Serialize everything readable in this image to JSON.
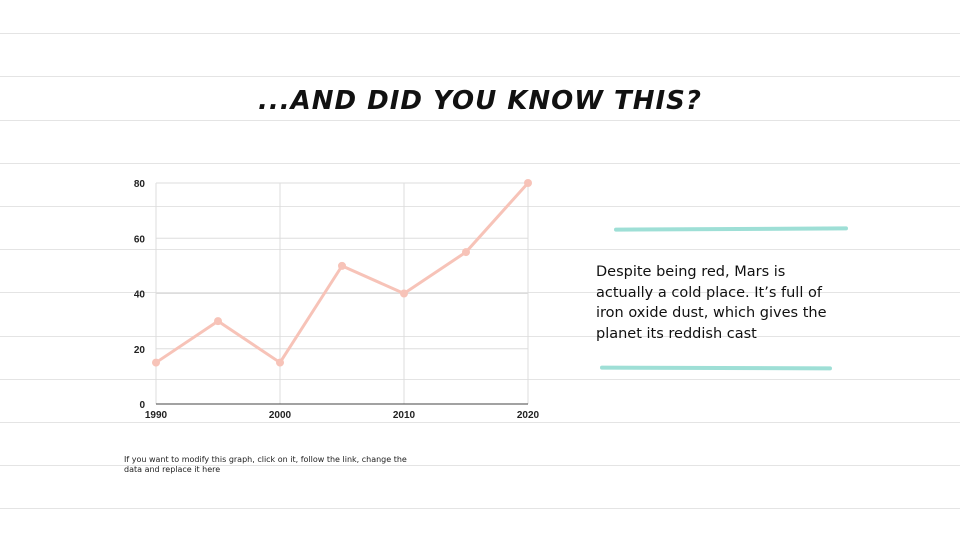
{
  "slide": {
    "title": "...and did you know this?",
    "body_text": "Despite being red, Mars is actually a cold place. It’s full of iron oxide dust, which gives the planet its reddish cast",
    "note_text": "If you want to modify this graph, click on it, follow the link, change the data and replace it here",
    "accent_color": "#94dcd2",
    "line_color": "#f7c3b8"
  },
  "chart_data": {
    "type": "line",
    "title": "",
    "xlabel": "",
    "ylabel": "",
    "x": [
      1990,
      1995,
      2000,
      2005,
      2010,
      2015,
      2020
    ],
    "series": [
      {
        "values": [
          15,
          30,
          15,
          50,
          40,
          55,
          80
        ]
      }
    ],
    "xticks": [
      "1990",
      "2000",
      "2010",
      "2020"
    ],
    "yticks": [
      "0",
      "20",
      "40",
      "60",
      "80"
    ],
    "xlim": [
      1990,
      2020
    ],
    "ylim": [
      0,
      80
    ],
    "grid": true,
    "legend": "none"
  }
}
